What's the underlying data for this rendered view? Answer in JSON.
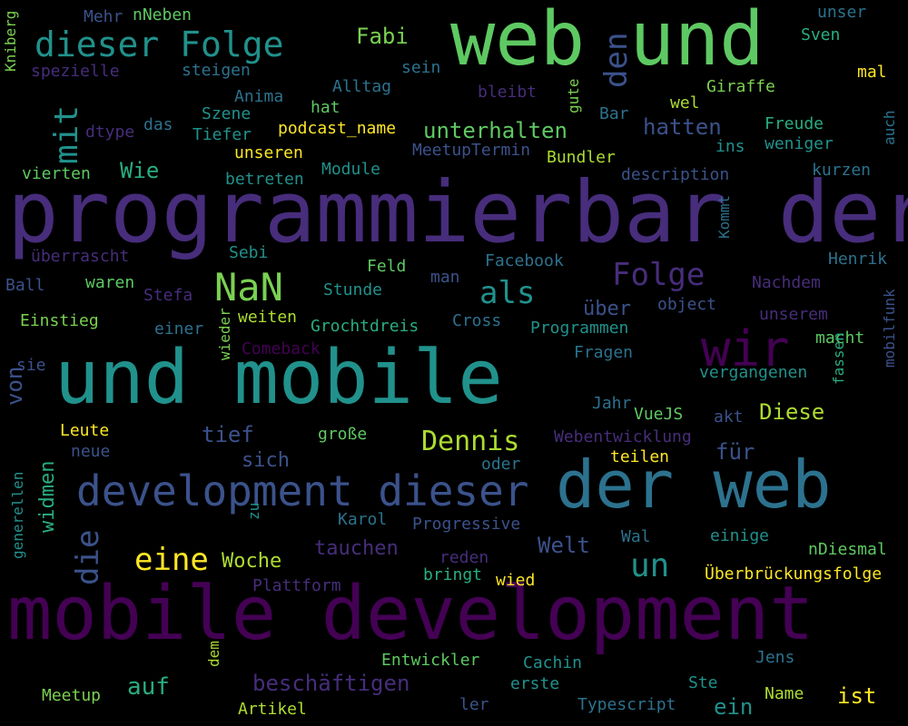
{
  "palette": {
    "background": "#000000",
    "c1": "#440154",
    "c2": "#472d7b",
    "c3": "#3b528b",
    "c4": "#2c728e",
    "c5": "#21918c",
    "c6": "#28ae80",
    "c7": "#5ec962",
    "c8": "#addc30",
    "c9": "#fde725"
  },
  "words": [
    {
      "text": "programmierbar der",
      "color": "#472d7b"
    },
    {
      "text": "mobile development",
      "color": "#440154"
    },
    {
      "text": "web und",
      "color": "#5ec962"
    },
    {
      "text": "und mobile",
      "color": "#21918c"
    },
    {
      "text": "der web",
      "color": "#2c728e"
    },
    {
      "text": "development dieser",
      "color": "#3b528b"
    },
    {
      "text": "dieser Folge",
      "color": "#21918c"
    },
    {
      "text": "wir",
      "color": "#440154"
    },
    {
      "text": "NaN",
      "color": "#7ad151"
    },
    {
      "text": "Folge",
      "color": "#472d7b"
    },
    {
      "text": "als",
      "color": "#21918c"
    },
    {
      "text": "eine",
      "color": "#fde725"
    },
    {
      "text": "Dennis",
      "color": "#addc30"
    },
    {
      "text": "un",
      "color": "#21918c"
    },
    {
      "text": "mit",
      "color": "#21918c"
    },
    {
      "text": "den",
      "color": "#3b528b"
    },
    {
      "text": "die",
      "color": "#3b528b"
    },
    {
      "text": "unterhalten",
      "color": "#5ec962"
    },
    {
      "text": "hatten",
      "color": "#3b528b"
    },
    {
      "text": "beschäftigen",
      "color": "#472d7b"
    },
    {
      "text": "tauchen",
      "color": "#472d7b"
    },
    {
      "text": "Fabi",
      "color": "#7ad151"
    },
    {
      "text": "Wie",
      "color": "#28ae80"
    },
    {
      "text": "tief",
      "color": "#3b528b"
    },
    {
      "text": "sich",
      "color": "#3b528b"
    },
    {
      "text": "Diese",
      "color": "#addc30"
    },
    {
      "text": "über",
      "color": "#3b528b"
    },
    {
      "text": "für",
      "color": "#3b528b"
    },
    {
      "text": "auf",
      "color": "#28ae80"
    },
    {
      "text": "Welt",
      "color": "#3b528b"
    },
    {
      "text": "Woche",
      "color": "#addc30"
    },
    {
      "text": "ist",
      "color": "#fde725"
    },
    {
      "text": "ein",
      "color": "#21918c"
    },
    {
      "text": "von",
      "color": "#3b528b"
    },
    {
      "text": "widmen",
      "color": "#28ae80"
    },
    {
      "text": "Mehr",
      "color": "#3b528b"
    },
    {
      "text": "nNeben",
      "color": "#5ec962"
    },
    {
      "text": "unser",
      "color": "#2c728e"
    },
    {
      "text": "Sven",
      "color": "#28ae80"
    },
    {
      "text": "mal",
      "color": "#fde725"
    },
    {
      "text": "Kniberg",
      "color": "#7ad151"
    },
    {
      "text": "spezielle",
      "color": "#472d7b"
    },
    {
      "text": "steigen",
      "color": "#2c728e"
    },
    {
      "text": "sein",
      "color": "#2c728e"
    },
    {
      "text": "bleibt",
      "color": "#472d7b"
    },
    {
      "text": "gute",
      "color": "#7ad151"
    },
    {
      "text": "Giraffe",
      "color": "#7ad151"
    },
    {
      "text": "Anima",
      "color": "#2c728e"
    },
    {
      "text": "Alltag",
      "color": "#2c728e"
    },
    {
      "text": "hat",
      "color": "#5ec962"
    },
    {
      "text": "wel",
      "color": "#addc30"
    },
    {
      "text": "Bar",
      "color": "#2c728e"
    },
    {
      "text": "auch",
      "color": "#2c728e"
    },
    {
      "text": "dtype",
      "color": "#472d7b"
    },
    {
      "text": "das",
      "color": "#2c728e"
    },
    {
      "text": "Szene",
      "color": "#21918c"
    },
    {
      "text": "podcast_name",
      "color": "#fde725"
    },
    {
      "text": "Freude",
      "color": "#28ae80"
    },
    {
      "text": "Tiefer",
      "color": "#21918c"
    },
    {
      "text": "ins",
      "color": "#21918c"
    },
    {
      "text": "weniger",
      "color": "#21918c"
    },
    {
      "text": "unseren",
      "color": "#fde725"
    },
    {
      "text": "MeetupTermin",
      "color": "#3b528b"
    },
    {
      "text": "Bundler",
      "color": "#addc30"
    },
    {
      "text": "vierten",
      "color": "#5ec962"
    },
    {
      "text": "betreten",
      "color": "#21918c"
    },
    {
      "text": "Module",
      "color": "#21918c"
    },
    {
      "text": "description",
      "color": "#3b528b"
    },
    {
      "text": "kurzen",
      "color": "#2c728e"
    },
    {
      "text": "Kommt",
      "color": "#2c728e"
    },
    {
      "text": "überrascht",
      "color": "#472d7b"
    },
    {
      "text": "Sebi",
      "color": "#21918c"
    },
    {
      "text": "Facebook",
      "color": "#2c728e"
    },
    {
      "text": "Henrik",
      "color": "#2c728e"
    },
    {
      "text": "Feld",
      "color": "#5ec962"
    },
    {
      "text": "Ball",
      "color": "#3b528b"
    },
    {
      "text": "waren",
      "color": "#5ec962"
    },
    {
      "text": "man",
      "color": "#3b528b"
    },
    {
      "text": "Nachdem",
      "color": "#472d7b"
    },
    {
      "text": "Stefa",
      "color": "#472d7b"
    },
    {
      "text": "Stunde",
      "color": "#21918c"
    },
    {
      "text": "object",
      "color": "#3b528b"
    },
    {
      "text": "mobilfunk",
      "color": "#3b528b"
    },
    {
      "text": "Einstieg",
      "color": "#7ad151"
    },
    {
      "text": "einer",
      "color": "#2c728e"
    },
    {
      "text": "weiten",
      "color": "#addc30"
    },
    {
      "text": "Cross",
      "color": "#2c728e"
    },
    {
      "text": "Grochtdreis",
      "color": "#28ae80"
    },
    {
      "text": "Programmen",
      "color": "#21918c"
    },
    {
      "text": "unserem",
      "color": "#472d7b"
    },
    {
      "text": "macht",
      "color": "#5ec962"
    },
    {
      "text": "Comeback",
      "color": "#440154"
    },
    {
      "text": "wieder",
      "color": "#7ad151"
    },
    {
      "text": "Fragen",
      "color": "#2c728e"
    },
    {
      "text": "sie",
      "color": "#3b528b"
    },
    {
      "text": "vergangenen",
      "color": "#21918c"
    },
    {
      "text": "fassen",
      "color": "#28ae80"
    },
    {
      "text": "Jahr",
      "color": "#2c728e"
    },
    {
      "text": "VueJS",
      "color": "#5ec962"
    },
    {
      "text": "akt",
      "color": "#3b528b"
    },
    {
      "text": "Leute",
      "color": "#fde725"
    },
    {
      "text": "große",
      "color": "#5ec962"
    },
    {
      "text": "Webentwicklung",
      "color": "#472d7b"
    },
    {
      "text": "neue",
      "color": "#3b528b"
    },
    {
      "text": "teilen",
      "color": "#fde725"
    },
    {
      "text": "oder",
      "color": "#2c728e"
    },
    {
      "text": "generellen",
      "color": "#21918c"
    },
    {
      "text": "zu",
      "color": "#21918c"
    },
    {
      "text": "Karol",
      "color": "#2c728e"
    },
    {
      "text": "Progressive",
      "color": "#3b528b"
    },
    {
      "text": "Wal",
      "color": "#2c728e"
    },
    {
      "text": "einige",
      "color": "#21918c"
    },
    {
      "text": "nDiesmal",
      "color": "#5ec962"
    },
    {
      "text": "reden",
      "color": "#472d7b"
    },
    {
      "text": "Überbrückungsfolge",
      "color": "#fde725"
    },
    {
      "text": "bringt",
      "color": "#28ae80"
    },
    {
      "text": "wied",
      "color": "#fde725"
    },
    {
      "text": "Plattform",
      "color": "#472d7b"
    },
    {
      "text": "Entwickler",
      "color": "#5ec962"
    },
    {
      "text": "Cachin",
      "color": "#21918c"
    },
    {
      "text": "Jens",
      "color": "#2c728e"
    },
    {
      "text": "Meetup",
      "color": "#7ad151"
    },
    {
      "text": "dem",
      "color": "#addc30"
    },
    {
      "text": "erste",
      "color": "#21918c"
    },
    {
      "text": "Ste",
      "color": "#21918c"
    },
    {
      "text": "Name",
      "color": "#addc30"
    },
    {
      "text": "ler",
      "color": "#3b528b"
    },
    {
      "text": "Typescript",
      "color": "#2c728e"
    },
    {
      "text": "Artikel",
      "color": "#addc30"
    }
  ]
}
